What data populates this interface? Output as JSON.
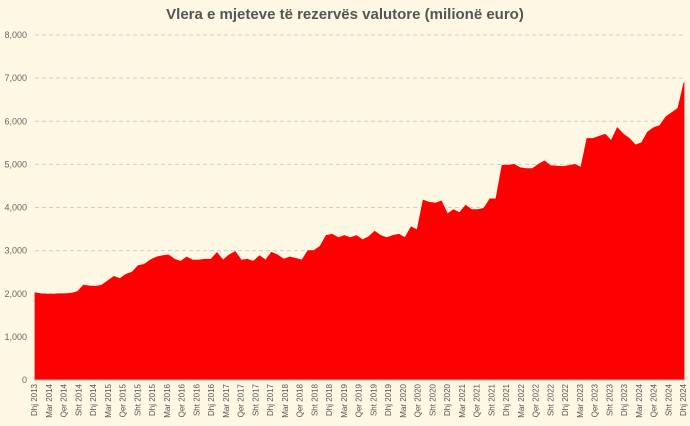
{
  "chart_data": {
    "type": "area",
    "title": "Vlera e mjeteve të rezervës valutore (milionë euro)",
    "xlabel": "",
    "ylabel": "",
    "ylim": [
      0,
      8000
    ],
    "yticks": [
      "0",
      "1,000",
      "2,000",
      "3,000",
      "4,000",
      "5,000",
      "6,000",
      "7,000",
      "8,000"
    ],
    "y_tick_values": [
      0,
      1000,
      2000,
      3000,
      4000,
      5000,
      6000,
      7000,
      8000
    ],
    "grid": true,
    "legend": "none",
    "color": "#ff0000",
    "x_tick_labels": [
      "Dhj 2013",
      "Mar 2014",
      "Qer 2014",
      "Sht 2014",
      "Dhj 2014",
      "Mar 2015",
      "Qer 2015",
      "Sht 2015",
      "Dhj 2015",
      "Mar 2016",
      "Qer 2016",
      "Sht 2016",
      "Dhj 2016",
      "Mar 2017",
      "Qer 2017",
      "Sht 2017",
      "Dhj 2017",
      "Mar 2018",
      "Qer 2018",
      "Sht 2018",
      "Dhj 2018",
      "Mar 2019",
      "Qer 2019",
      "Sht 2019",
      "Dhj 2019",
      "Mar 2020",
      "Qer 2020",
      "Sht 2020",
      "Dhj 2020",
      "Mar 2021",
      "Qer 2021",
      "Sht 2021",
      "Dhj 2021",
      "Mar 2022",
      "Qer 2022",
      "Sht 2022",
      "Dhj 2022",
      "Mar 2023",
      "Qer 2023",
      "Sht 2023",
      "Dhj 2023",
      "Mar 2024",
      "Qer 2024",
      "Sht 2024",
      "Dhj 2024"
    ],
    "values": [
      2020,
      2000,
      1990,
      1990,
      2000,
      2000,
      2010,
      2050,
      2200,
      2180,
      2170,
      2200,
      2300,
      2400,
      2350,
      2450,
      2500,
      2650,
      2680,
      2780,
      2850,
      2880,
      2900,
      2800,
      2750,
      2850,
      2780,
      2780,
      2800,
      2800,
      2950,
      2780,
      2900,
      2980,
      2780,
      2800,
      2750,
      2880,
      2780,
      2960,
      2900,
      2800,
      2850,
      2820,
      2780,
      3000,
      3000,
      3100,
      3350,
      3380,
      3300,
      3350,
      3300,
      3350,
      3250,
      3320,
      3450,
      3350,
      3300,
      3350,
      3380,
      3300,
      3550,
      3480,
      4170,
      4120,
      4100,
      4150,
      3850,
      3950,
      3880,
      4050,
      3950,
      3950,
      3980,
      4200,
      4200,
      4980,
      4980,
      5000,
      4920,
      4900,
      4900,
      5000,
      5080,
      4970,
      4960,
      4950,
      4970,
      5000,
      4930,
      5600,
      5600,
      5650,
      5700,
      5550,
      5850,
      5700,
      5600,
      5450,
      5500,
      5750,
      5850,
      5900,
      6100,
      6200,
      6300,
      6900
    ]
  }
}
